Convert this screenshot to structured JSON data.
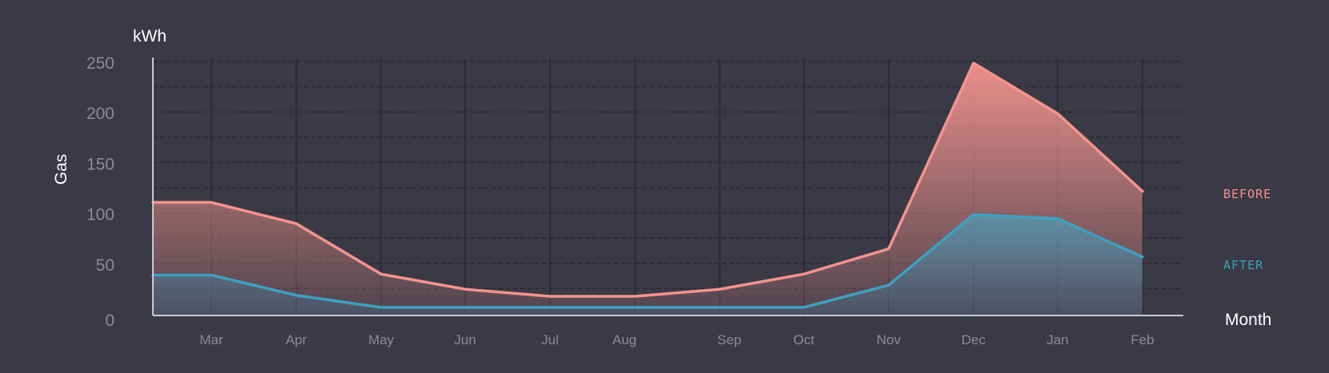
{
  "chart_data": {
    "type": "area",
    "ylabel": "Gas",
    "yunit": "kWh",
    "xlabel": "Month",
    "categories": [
      "Mar",
      "Apr",
      "May",
      "Jun",
      "Jul",
      "Aug",
      "Sep",
      "Oct",
      "Nov",
      "Dec",
      "Jan",
      "Feb"
    ],
    "series": [
      {
        "name": "BEFORE",
        "color": "#f4938d",
        "values": [
          112,
          91,
          41,
          26,
          19,
          19,
          26,
          41,
          66,
          250,
          200,
          123
        ]
      },
      {
        "name": "AFTER",
        "color": "#3ea1c0",
        "values": [
          40,
          20,
          8,
          8,
          8,
          8,
          8,
          8,
          30,
          100,
          96,
          58
        ]
      }
    ],
    "ylim": [
      0,
      250
    ],
    "yticks": [
      0,
      50,
      100,
      150,
      200,
      250
    ],
    "grid": true,
    "legend_placement": "right"
  },
  "colors": {
    "background": "#3a3a46",
    "grid": "#26262e",
    "axis": "#c9c9d0",
    "tick_text": "#8c8c96"
  }
}
